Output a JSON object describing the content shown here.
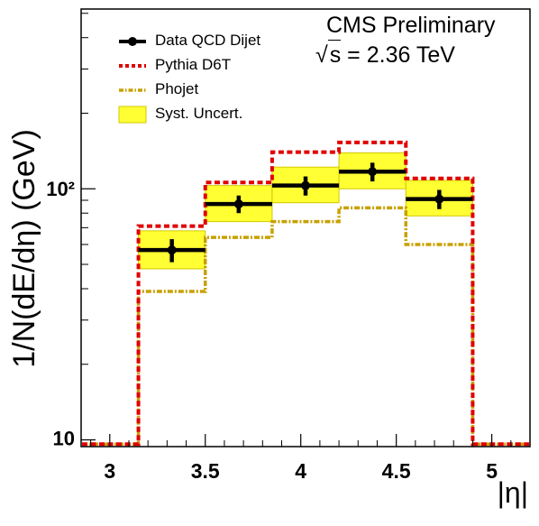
{
  "chart_data": {
    "type": "step",
    "x_label": "|η|",
    "y_label": "1/N(dE/dη) (GeV)",
    "y_scale": "log",
    "xlim": [
      2.85,
      5.2
    ],
    "ylim": [
      9.4,
      520
    ],
    "x_ticks": [
      "3",
      "3.5",
      "4",
      "4.5",
      "5"
    ],
    "y_ticks": [
      "10",
      "10²"
    ],
    "bin_edges": [
      3.15,
      3.5,
      3.85,
      4.2,
      4.55,
      4.9
    ],
    "series": [
      {
        "name": "Data QCD Dijet",
        "style": "points",
        "color": "#000000",
        "x": [
          3.325,
          3.675,
          4.025,
          4.375,
          4.725
        ],
        "values": [
          57,
          87,
          103,
          117,
          91
        ],
        "stat_errors": [
          6,
          7,
          9,
          10,
          8
        ],
        "syst_band": [
          [
            48,
            68
          ],
          [
            74,
            103
          ],
          [
            88,
            122
          ],
          [
            100,
            139
          ],
          [
            78,
            108
          ]
        ]
      },
      {
        "name": "Pythia D6T",
        "style": "step",
        "color": "#e00000",
        "values": [
          71,
          106,
          140,
          153,
          110
        ]
      },
      {
        "name": "Phojet",
        "style": "step",
        "color": "#c8a000",
        "values": [
          39,
          64,
          74,
          84,
          60
        ]
      }
    ],
    "legend": [
      "Data QCD Dijet",
      "Pythia D6T",
      "Phojet",
      "Syst. Uncert."
    ],
    "legend_position": "top-left",
    "colors": {
      "syst_band": "#ffff33",
      "syst_band_border": "#d2c800"
    }
  },
  "annotations": {
    "experiment": "CMS Preliminary",
    "energy_symbol": "s",
    "energy_text": " = 2.36 TeV"
  }
}
